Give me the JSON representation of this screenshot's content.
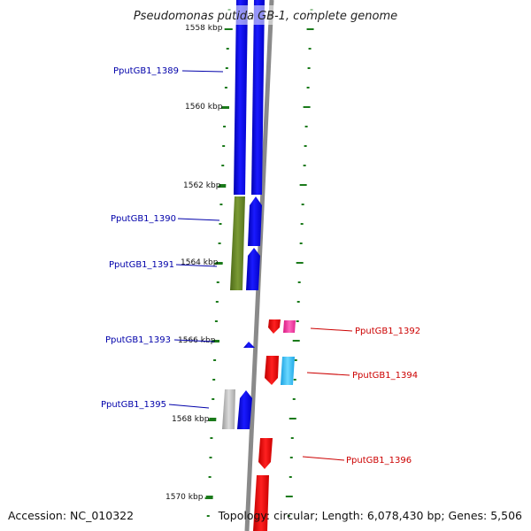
{
  "title": "Pseudomonas putida GB-1, complete genome",
  "accession_text": "Accession: NC_010322",
  "summary_text": "Topology: circular; Length: 6,078,430 bp; Genes: 5,506",
  "colors": {
    "forward_label": "#0000aa",
    "reverse_label": "#cc0000",
    "tick": "#1a7a1a",
    "backbone": "#8a8a8a"
  },
  "scale_ticks": [
    "1558 kbp",
    "1560 kbp",
    "1562 kbp",
    "1564 kbp",
    "1566 kbp",
    "1568 kbp",
    "1570 kbp"
  ],
  "genes": [
    {
      "name": "PputGB1_1389",
      "side": "left"
    },
    {
      "name": "PputGB1_1390",
      "side": "left"
    },
    {
      "name": "PputGB1_1391",
      "side": "left"
    },
    {
      "name": "PputGB1_1392",
      "side": "right"
    },
    {
      "name": "PputGB1_1393",
      "side": "left"
    },
    {
      "name": "PputGB1_1394",
      "side": "right"
    },
    {
      "name": "PputGB1_1395",
      "side": "left"
    },
    {
      "name": "PputGB1_1396",
      "side": "right"
    }
  ]
}
